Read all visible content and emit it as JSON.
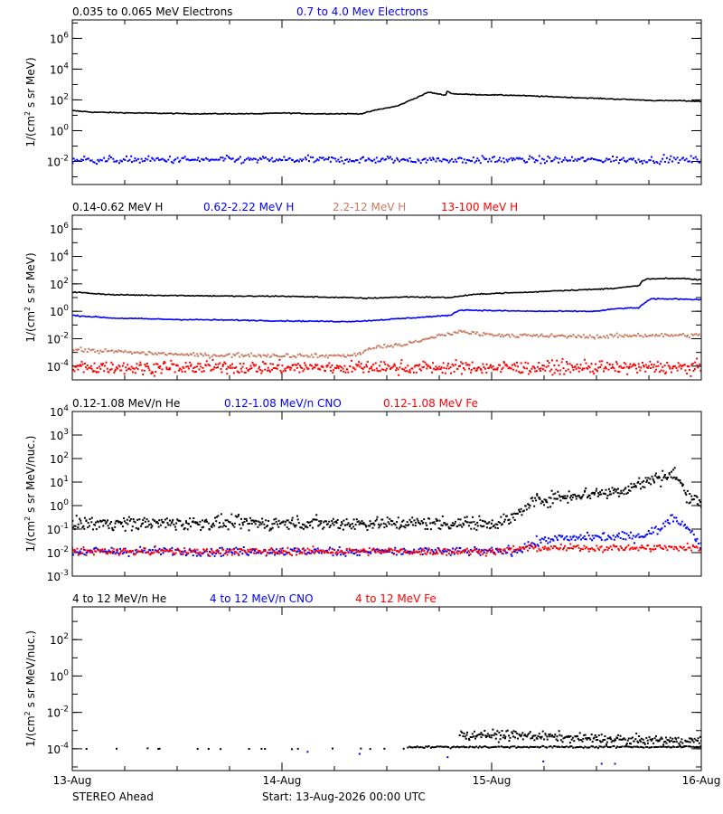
{
  "chart_data": [
    {
      "type": "scatter",
      "legend": [
        {
          "label": "0.035 to 0.065 MeV Electrons",
          "color": "#000000"
        },
        {
          "label": "0.7 to 4.0 Mev Electrons",
          "color": "#0000ff"
        }
      ],
      "ylabel_main": "1/(cm",
      "ylabel_sup": "2",
      "ylabel_rest": " s sr MeV)",
      "yscale": "log",
      "ylim_exp": [
        -3.5,
        7.2
      ],
      "y_ticks": [
        {
          "base": "10",
          "exp": "6",
          "value_exp": 6
        },
        {
          "base": "10",
          "exp": "4",
          "value_exp": 4
        },
        {
          "base": "10",
          "exp": "2",
          "value_exp": 2
        },
        {
          "base": "10",
          "exp": "0",
          "value_exp": 0
        },
        {
          "base": "10",
          "exp": "-2",
          "value_exp": -2
        }
      ],
      "series": [
        {
          "color": "#000000",
          "style": "line",
          "noise": 0.03,
          "x_days": [
            0,
            0.1,
            0.3,
            0.6,
            0.9,
            1.0,
            1.15,
            1.3,
            1.38,
            1.45,
            1.55,
            1.6,
            1.7,
            1.78,
            1.79,
            1.81,
            1.9,
            2.1,
            2.3,
            2.5,
            2.7,
            2.8,
            2.9,
            3.0
          ],
          "log_y": [
            1.3,
            1.2,
            1.15,
            1.1,
            1.1,
            1.15,
            1.1,
            1.1,
            1.1,
            1.35,
            1.6,
            1.9,
            2.5,
            2.3,
            2.6,
            2.4,
            2.35,
            2.3,
            2.2,
            2.1,
            2.0,
            1.95,
            1.95,
            1.9
          ]
        },
        {
          "color": "#0000ff",
          "style": "dots",
          "noise": 0.22,
          "count": 420,
          "x_days": [
            0,
            3.0
          ],
          "log_y": [
            -1.9,
            -1.9
          ]
        }
      ]
    },
    {
      "type": "scatter",
      "legend": [
        {
          "label": "0.14-0.62 MeV H",
          "color": "#000000"
        },
        {
          "label": "0.62-2.22 MeV H",
          "color": "#0000ff"
        },
        {
          "label": "2.2-12 MeV H",
          "color": "#c87a60"
        },
        {
          "label": "13-100 MeV H",
          "color": "#ff0000"
        }
      ],
      "ylabel_main": "1/(cm",
      "ylabel_sup": "2",
      "ylabel_rest": " s sr MeV)",
      "yscale": "log",
      "ylim_exp": [
        -5.0,
        7.0
      ],
      "y_ticks": [
        {
          "base": "10",
          "exp": "6",
          "value_exp": 6
        },
        {
          "base": "10",
          "exp": "4",
          "value_exp": 4
        },
        {
          "base": "10",
          "exp": "2",
          "value_exp": 2
        },
        {
          "base": "10",
          "exp": "0",
          "value_exp": 0
        },
        {
          "base": "10",
          "exp": "-2",
          "value_exp": -2
        },
        {
          "base": "10",
          "exp": "-4",
          "value_exp": -4
        }
      ],
      "series": [
        {
          "color": "#000000",
          "style": "line",
          "noise": 0.04,
          "x_days": [
            0,
            0.2,
            0.5,
            0.8,
            1.0,
            1.3,
            1.4,
            1.6,
            1.8,
            1.9,
            2.0,
            2.2,
            2.3,
            2.5,
            2.6,
            2.7,
            2.72,
            2.74,
            2.9,
            3.0
          ],
          "log_y": [
            1.4,
            1.2,
            1.15,
            1.1,
            1.1,
            1.0,
            0.95,
            1.05,
            1.0,
            1.2,
            1.3,
            1.4,
            1.5,
            1.6,
            1.7,
            1.85,
            2.2,
            2.35,
            2.4,
            2.3
          ]
        },
        {
          "color": "#0000ff",
          "style": "line",
          "noise": 0.04,
          "x_days": [
            0,
            0.2,
            0.5,
            0.8,
            1.0,
            1.3,
            1.4,
            1.6,
            1.8,
            1.85,
            2.0,
            2.2,
            2.5,
            2.6,
            2.7,
            2.72,
            2.76,
            2.9,
            3.0
          ],
          "log_y": [
            -0.3,
            -0.5,
            -0.6,
            -0.65,
            -0.7,
            -0.75,
            -0.7,
            -0.5,
            -0.3,
            0.1,
            0.05,
            0.0,
            0.0,
            0.2,
            0.25,
            0.5,
            0.9,
            0.9,
            0.85
          ]
        },
        {
          "color": "#c87a60",
          "style": "dots",
          "noise": 0.14,
          "count": 380,
          "x_days": [
            0,
            0.3,
            0.6,
            0.9,
            1.2,
            1.35,
            1.45,
            1.6,
            1.7,
            1.8,
            1.85,
            2.0,
            2.2,
            2.5,
            2.7,
            3.0
          ],
          "log_y": [
            -2.8,
            -3.0,
            -3.2,
            -3.2,
            -3.25,
            -3.2,
            -2.6,
            -2.4,
            -2.0,
            -1.6,
            -1.5,
            -1.7,
            -1.8,
            -1.85,
            -1.75,
            -1.75
          ]
        },
        {
          "color": "#ff0000",
          "style": "dots",
          "noise": 0.45,
          "count": 650,
          "x_days": [
            0,
            3.0
          ],
          "log_y": [
            -4.1,
            -4.1
          ]
        }
      ]
    },
    {
      "type": "scatter",
      "legend": [
        {
          "label": "0.12-1.08 MeV/n He",
          "color": "#000000"
        },
        {
          "label": "0.12-1.08 MeV/n CNO",
          "color": "#0000ff"
        },
        {
          "label": "0.12-1.08 MeV Fe",
          "color": "#ff0000"
        }
      ],
      "ylabel_main": "1/(cm",
      "ylabel_sup": "2",
      "ylabel_rest": " s sr MeV/nuc.)",
      "yscale": "log",
      "ylim_exp": [
        -3.0,
        4.0
      ],
      "y_ticks": [
        {
          "base": "10",
          "exp": "4",
          "value_exp": 4
        },
        {
          "base": "10",
          "exp": "3",
          "value_exp": 3
        },
        {
          "base": "10",
          "exp": "2",
          "value_exp": 2
        },
        {
          "base": "10",
          "exp": "1",
          "value_exp": 1
        },
        {
          "base": "10",
          "exp": "0",
          "value_exp": 0
        },
        {
          "base": "10",
          "exp": "-1",
          "value_exp": -1
        },
        {
          "base": "10",
          "exp": "-2",
          "value_exp": -2
        },
        {
          "base": "10",
          "exp": "-3",
          "value_exp": -3
        }
      ],
      "series": [
        {
          "color": "#000000",
          "style": "dots",
          "noise": 0.28,
          "count": 700,
          "x_days": [
            0,
            0.5,
            1.0,
            1.5,
            2.0,
            2.1,
            2.2,
            2.4,
            2.6,
            2.7,
            2.8,
            2.88,
            2.93,
            3.0
          ],
          "log_y": [
            -0.75,
            -0.75,
            -0.75,
            -0.75,
            -0.75,
            -0.55,
            0.2,
            0.45,
            0.6,
            0.9,
            1.2,
            1.3,
            0.5,
            0.1
          ]
        },
        {
          "color": "#0000ff",
          "style": "dots",
          "noise": 0.18,
          "count": 500,
          "x_days": [
            0,
            2.0,
            2.1,
            2.2,
            2.3,
            2.5,
            2.7,
            2.8,
            2.86,
            2.93,
            3.0
          ],
          "log_y": [
            -1.95,
            -1.95,
            -1.95,
            -1.6,
            -1.4,
            -1.35,
            -1.3,
            -1.0,
            -0.5,
            -0.9,
            -1.7
          ]
        },
        {
          "color": "#ff0000",
          "style": "dots",
          "noise": 0.15,
          "count": 500,
          "x_days": [
            0,
            2.0,
            2.2,
            3.0
          ],
          "log_y": [
            -1.95,
            -1.95,
            -1.8,
            -1.8
          ]
        }
      ]
    },
    {
      "type": "scatter",
      "legend": [
        {
          "label": "4 to 12 MeV/n He",
          "color": "#000000"
        },
        {
          "label": "4 to 12 MeV/n CNO",
          "color": "#0000ff"
        },
        {
          "label": "4 to 12 MeV Fe",
          "color": "#ff0000"
        }
      ],
      "ylabel_main": "1/(cm",
      "ylabel_sup": "2",
      "ylabel_rest": " s sr MeV/nuc.)",
      "yscale": "log",
      "ylim_exp": [
        -5.2,
        3.8
      ],
      "y_ticks": [
        {
          "base": "10",
          "exp": "2",
          "value_exp": 2
        },
        {
          "base": "10",
          "exp": "0",
          "value_exp": 0
        },
        {
          "base": "10",
          "exp": "-2",
          "value_exp": -2
        },
        {
          "base": "10",
          "exp": "-4",
          "value_exp": -4
        }
      ],
      "series": [
        {
          "color": "#000000",
          "style": "sparse",
          "noise": 0.02,
          "count": 18,
          "x_days": [
            0,
            1.6
          ],
          "log_y": [
            -4.0,
            -4.0
          ]
        },
        {
          "color": "#000000",
          "style": "dots",
          "noise": 0.05,
          "count": 180,
          "x_days": [
            1.6,
            3.0
          ],
          "log_y": [
            -3.9,
            -3.9
          ]
        },
        {
          "color": "#000000",
          "style": "dots",
          "noise": 0.25,
          "count": 260,
          "x_days": [
            1.85,
            2.2,
            2.6,
            3.0
          ],
          "log_y": [
            -3.2,
            -3.3,
            -3.5,
            -3.6
          ]
        },
        {
          "color": "#0000ff",
          "style": "sparse",
          "noise": 0.02,
          "count": 6,
          "x_days": [
            0.8,
            2.9
          ],
          "log_y": [
            -4.0,
            -5.0
          ]
        }
      ]
    }
  ],
  "x_axis": {
    "tick_labels": [
      "13-Aug",
      "14-Aug",
      "15-Aug",
      "16-Aug"
    ],
    "range_days": [
      0,
      3
    ]
  },
  "footer": {
    "spacecraft": "STEREO Ahead",
    "start": "Start: 13-Aug-2026 00:00 UTC"
  }
}
